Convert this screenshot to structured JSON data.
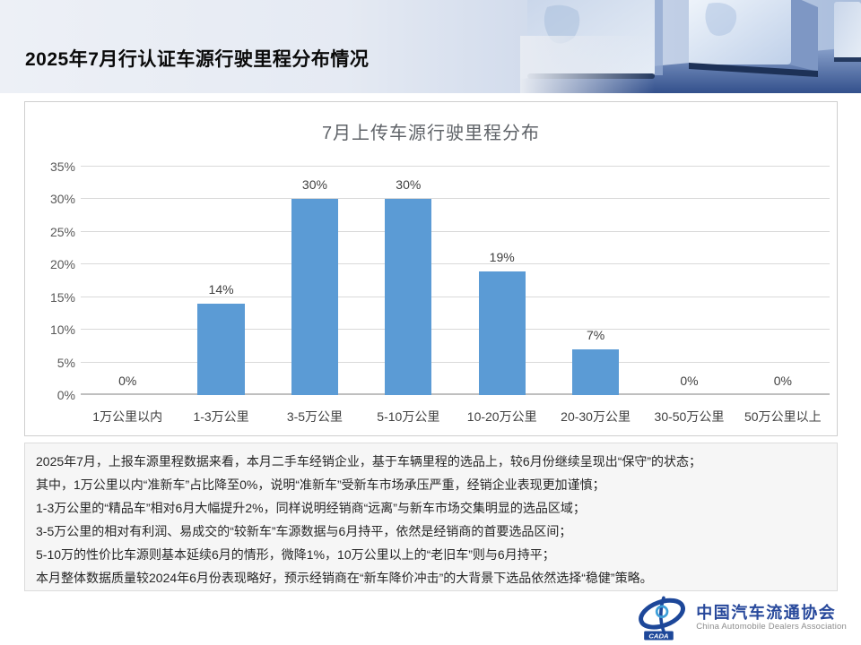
{
  "header": {
    "title": "2025年7月行认证车源行驶里程分布情况"
  },
  "chart_data": {
    "type": "bar",
    "title": "7月上传车源行驶里程分布",
    "categories": [
      "1万公里以内",
      "1-3万公里",
      "3-5万公里",
      "5-10万公里",
      "10-20万公里",
      "20-30万公里",
      "30-50万公里",
      "50万公里以上"
    ],
    "values": [
      0,
      14,
      30,
      30,
      19,
      7,
      0,
      0
    ],
    "data_labels": [
      "0%",
      "14%",
      "30%",
      "30%",
      "19%",
      "7%",
      "0%",
      "0%"
    ],
    "ylim": [
      0,
      35
    ],
    "ytick_step": 5,
    "ytick_suffix": "%",
    "grid": true,
    "legend": "none",
    "bar_color": "#5B9BD5",
    "xlabel": "",
    "ylabel": ""
  },
  "notes": {
    "lines": [
      "2025年7月，上报车源里程数据来看，本月二手车经销企业，基于车辆里程的选品上，较6月份继续呈现出“保守”的状态；",
      "其中，1万公里以内“准新车”占比降至0%，说明“准新车”受新车市场承压严重，经销企业表现更加谨慎；",
      "1-3万公里的“精品车”相对6月大幅提升2%，同样说明经销商“远离”与新车市场交集明显的选品区域；",
      "3-5万公里的相对有利润、易成交的“较新车”车源数据与6月持平，依然是经销商的首要选品区间；",
      "5-10万的性价比车源则基本延续6月的情形，微降1%，10万公里以上的“老旧车”则与6月持平；",
      "本月整体数据质量较2024年6月份表现略好，预示经销商在“新车降价冲击”的大背景下选品依然选择“稳健”策略。"
    ]
  },
  "footer": {
    "org_cn": "中国汽车流通协会",
    "org_en": "China Automobile Dealers Association",
    "logo_abbr": "CADA",
    "brand_blue": "#27489B"
  }
}
